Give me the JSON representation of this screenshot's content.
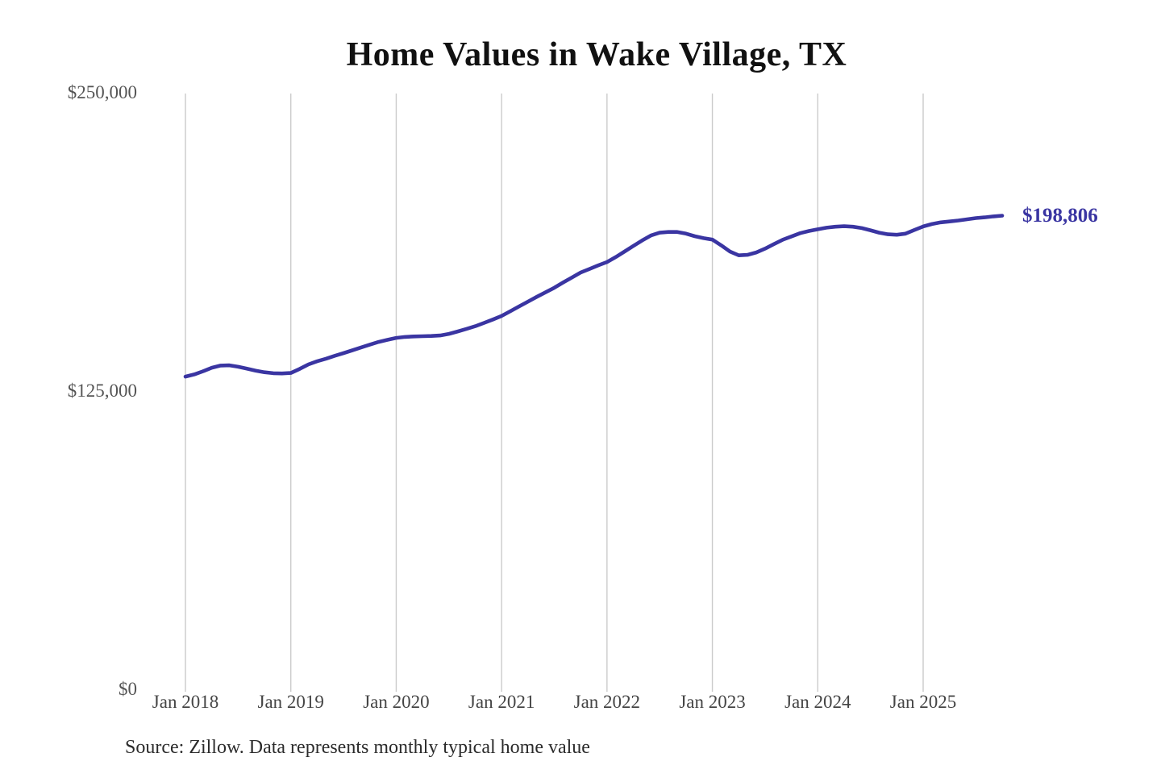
{
  "page": {
    "background": "#ffffff"
  },
  "chart_data": {
    "type": "line",
    "title": "Home Values in Wake Village, TX",
    "source_note": "Source: Zillow. Data represents monthly typical home value",
    "end_label": "$198,806",
    "end_value": 198806,
    "line_color": "#3a35a2",
    "grid_color": "#cbcbcb",
    "grid": "vertical-only",
    "legend": "none",
    "x_start_month": "Jan 2018",
    "x_end_month": "Oct 2025",
    "xticks": [
      "Jan 2018",
      "Jan 2019",
      "Jan 2020",
      "Jan 2021",
      "Jan 2022",
      "Jan 2023",
      "Jan 2024",
      "Jan 2025"
    ],
    "yticks": [
      {
        "label": "$250,000",
        "value": 250000
      },
      {
        "label": "$125,000",
        "value": 125000
      },
      {
        "label": "$0",
        "value": 0
      }
    ],
    "ylim": [
      0,
      250000
    ],
    "series": [
      {
        "name": "Monthly typical home value (USD)",
        "values": [
          131400,
          132300,
          133600,
          135100,
          136000,
          136100,
          135500,
          134700,
          133900,
          133200,
          132800,
          132700,
          132900,
          134600,
          136500,
          137800,
          138900,
          140100,
          141200,
          142400,
          143600,
          144800,
          145900,
          146800,
          147600,
          148000,
          148200,
          148300,
          148400,
          148600,
          149300,
          150300,
          151400,
          152500,
          153900,
          155300,
          156800,
          158800,
          160800,
          162800,
          164800,
          166700,
          168600,
          170800,
          172900,
          175000,
          176500,
          178000,
          179400,
          181500,
          183800,
          186100,
          188400,
          190500,
          191700,
          192000,
          192000,
          191300,
          190200,
          189400,
          188800,
          186400,
          183800,
          182200,
          182400,
          183400,
          185000,
          186900,
          188700,
          190100,
          191500,
          192400,
          193100,
          193800,
          194200,
          194400,
          194200,
          193600,
          192700,
          191700,
          191000,
          190800,
          191300,
          192800,
          194300,
          195300,
          196000,
          196400,
          196800,
          197300,
          197800,
          198100,
          198500,
          198806
        ]
      }
    ]
  }
}
